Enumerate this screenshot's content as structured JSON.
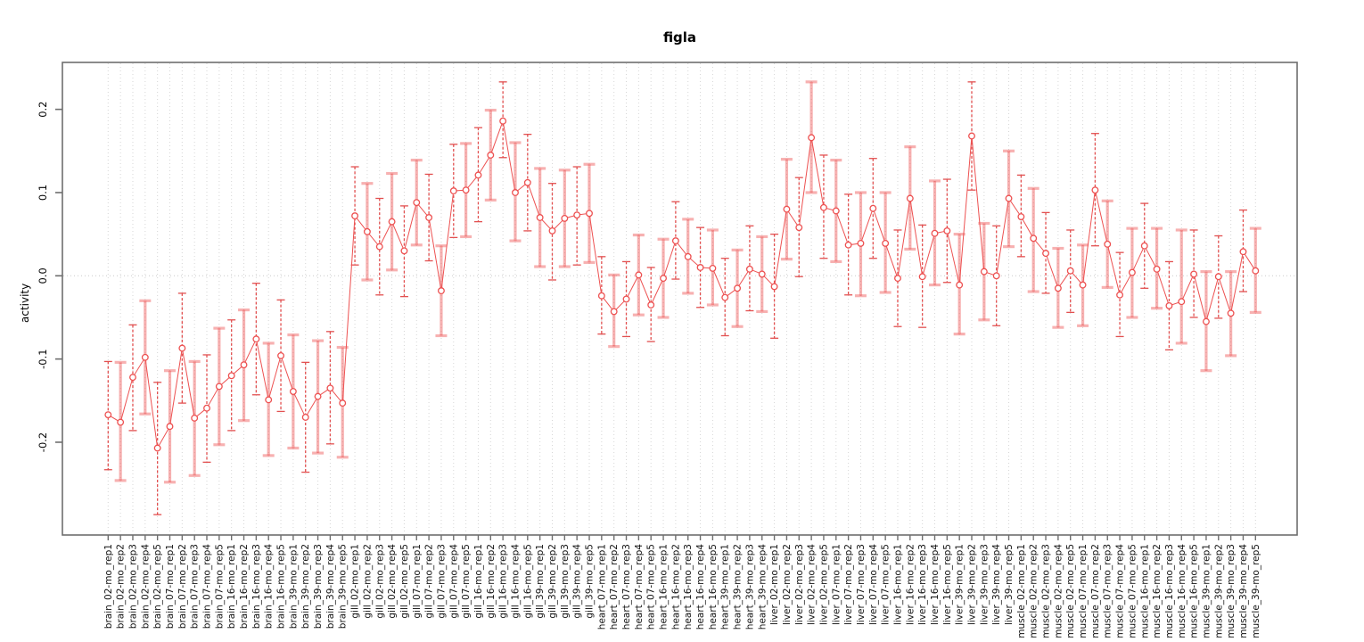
{
  "chart_data": {
    "type": "scatter",
    "subtype": "means-with-error-bars-connected-by-line",
    "title": "figla",
    "xlabel": "",
    "ylabel": "activity",
    "legend": "none",
    "grid": "vertical dotted gridline at every category; horizontal dotted line at y=0",
    "yticks": [
      "0.2",
      "0.1",
      "0.0",
      "-0.1",
      "-0.2"
    ],
    "ytick_values": [
      0.2,
      0.1,
      0.0,
      -0.1,
      -0.2
    ],
    "ylim": [
      -0.31,
      0.26
    ],
    "series_color": "#ed5151",
    "errorbar_pink": "#f2a3a3",
    "point_style": "open-circle",
    "categories": [
      "brain_02-mo_rep1",
      "brain_02-mo_rep2",
      "brain_02-mo_rep3",
      "brain_02-mo_rep4",
      "brain_02-mo_rep5",
      "brain_07-mo_rep1",
      "brain_07-mo_rep2",
      "brain_07-mo_rep3",
      "brain_07-mo_rep4",
      "brain_07-mo_rep5",
      "brain_16-mo_rep1",
      "brain_16-mo_rep2",
      "brain_16-mo_rep3",
      "brain_16-mo_rep4",
      "brain_16-mo_rep5",
      "brain_39-mo_rep1",
      "brain_39-mo_rep2",
      "brain_39-mo_rep3",
      "brain_39-mo_rep4",
      "brain_39-mo_rep5",
      "gill_02-mo_rep1",
      "gill_02-mo_rep2",
      "gill_02-mo_rep3",
      "gill_02-mo_rep4",
      "gill_02-mo_rep5",
      "gill_07-mo_rep1",
      "gill_07-mo_rep2",
      "gill_07-mo_rep3",
      "gill_07-mo_rep4",
      "gill_07-mo_rep5",
      "gill_16-mo_rep1",
      "gill_16-mo_rep2",
      "gill_16-mo_rep3",
      "gill_16-mo_rep4",
      "gill_16-mo_rep5",
      "gill_39-mo_rep1",
      "gill_39-mo_rep2",
      "gill_39-mo_rep3",
      "gill_39-mo_rep4",
      "gill_39-mo_rep5",
      "heart_07-mo_rep1",
      "heart_07-mo_rep2",
      "heart_07-mo_rep3",
      "heart_07-mo_rep4",
      "heart_07-mo_rep5",
      "heart_16-mo_rep1",
      "heart_16-mo_rep2",
      "heart_16-mo_rep3",
      "heart_16-mo_rep4",
      "heart_16-mo_rep5",
      "heart_39-mo_rep1",
      "heart_39-mo_rep2",
      "heart_39-mo_rep3",
      "heart_39-mo_rep4",
      "liver_02-mo_rep1",
      "liver_02-mo_rep2",
      "liver_02-mo_rep3",
      "liver_02-mo_rep4",
      "liver_02-mo_rep5",
      "liver_07-mo_rep1",
      "liver_07-mo_rep2",
      "liver_07-mo_rep3",
      "liver_07-mo_rep4",
      "liver_07-mo_rep5",
      "liver_16-mo_rep1",
      "liver_16-mo_rep2",
      "liver_16-mo_rep3",
      "liver_16-mo_rep4",
      "liver_16-mo_rep5",
      "liver_39-mo_rep1",
      "liver_39-mo_rep2",
      "liver_39-mo_rep3",
      "liver_39-mo_rep4",
      "liver_39-mo_rep5",
      "muscle_02-mo_rep1",
      "muscle_02-mo_rep2",
      "muscle_02-mo_rep3",
      "muscle_02-mo_rep4",
      "muscle_02-mo_rep5",
      "muscle_07-mo_rep1",
      "muscle_07-mo_rep2",
      "muscle_07-mo_rep3",
      "muscle_07-mo_rep4",
      "muscle_07-mo_rep5",
      "muscle_16-mo_rep1",
      "muscle_16-mo_rep2",
      "muscle_16-mo_rep3",
      "muscle_16-mo_rep4",
      "muscle_16-mo_rep5",
      "muscle_39-mo_rep1",
      "muscle_39-mo_rep2",
      "muscle_39-mo_rep3",
      "muscle_39-mo_rep4",
      "muscle_39-mo_rep5"
    ],
    "means": [
      -0.167,
      -0.176,
      -0.122,
      -0.098,
      -0.207,
      -0.181,
      -0.087,
      -0.171,
      -0.159,
      -0.133,
      -0.12,
      -0.107,
      -0.076,
      -0.149,
      -0.096,
      -0.139,
      -0.17,
      -0.145,
      -0.135,
      -0.153,
      0.072,
      0.053,
      0.035,
      0.065,
      0.03,
      0.088,
      0.07,
      -0.018,
      0.102,
      0.103,
      0.121,
      0.145,
      0.186,
      0.1,
      0.112,
      0.07,
      0.054,
      0.069,
      0.073,
      0.075,
      -0.024,
      -0.043,
      -0.028,
      0.001,
      -0.035,
      -0.003,
      0.042,
      0.023,
      0.01,
      0.009,
      -0.026,
      -0.015,
      0.008,
      0.002,
      -0.013,
      0.08,
      0.058,
      0.166,
      0.082,
      0.078,
      0.037,
      0.039,
      0.081,
      0.039,
      -0.003,
      0.093,
      -0.001,
      0.051,
      0.054,
      -0.011,
      0.168,
      0.005,
      0.0,
      0.093,
      0.071,
      0.045,
      0.027,
      -0.015,
      0.006,
      -0.011,
      0.103,
      0.038,
      -0.023,
      0.004,
      0.036,
      0.008,
      -0.036,
      -0.031,
      0.002,
      -0.055,
      -0.001,
      -0.045,
      0.029,
      0.006
    ],
    "lower": [
      -0.233,
      -0.246,
      -0.186,
      -0.166,
      -0.287,
      -0.248,
      -0.153,
      -0.24,
      -0.224,
      -0.203,
      -0.186,
      -0.174,
      -0.143,
      -0.216,
      -0.163,
      -0.207,
      -0.236,
      -0.213,
      -0.202,
      -0.218,
      0.013,
      -0.005,
      -0.023,
      0.007,
      -0.025,
      0.037,
      0.018,
      -0.072,
      0.046,
      0.047,
      0.065,
      0.091,
      0.142,
      0.042,
      0.054,
      0.011,
      -0.005,
      0.011,
      0.013,
      0.016,
      -0.07,
      -0.085,
      -0.073,
      -0.047,
      -0.079,
      -0.05,
      -0.004,
      -0.021,
      -0.038,
      -0.035,
      -0.072,
      -0.061,
      -0.042,
      -0.043,
      -0.075,
      0.02,
      -0.001,
      0.1,
      0.021,
      0.017,
      -0.023,
      -0.024,
      0.021,
      -0.02,
      -0.061,
      0.032,
      -0.062,
      -0.011,
      -0.008,
      -0.07,
      0.103,
      -0.053,
      -0.06,
      0.035,
      0.023,
      -0.019,
      -0.021,
      -0.062,
      -0.044,
      -0.06,
      0.036,
      -0.014,
      -0.073,
      -0.05,
      -0.015,
      -0.039,
      -0.089,
      -0.081,
      -0.05,
      -0.114,
      -0.051,
      -0.096,
      -0.019,
      -0.044
    ],
    "upper": [
      -0.103,
      -0.104,
      -0.059,
      -0.03,
      -0.128,
      -0.114,
      -0.021,
      -0.103,
      -0.095,
      -0.063,
      -0.053,
      -0.041,
      -0.009,
      -0.081,
      -0.029,
      -0.071,
      -0.104,
      -0.078,
      -0.067,
      -0.086,
      0.131,
      0.111,
      0.093,
      0.123,
      0.084,
      0.139,
      0.122,
      0.036,
      0.158,
      0.159,
      0.178,
      0.199,
      0.233,
      0.16,
      0.17,
      0.129,
      0.111,
      0.127,
      0.131,
      0.134,
      0.023,
      0.001,
      0.017,
      0.049,
      0.01,
      0.044,
      0.089,
      0.068,
      0.058,
      0.055,
      0.021,
      0.031,
      0.06,
      0.047,
      0.05,
      0.14,
      0.118,
      0.233,
      0.145,
      0.139,
      0.098,
      0.1,
      0.141,
      0.1,
      0.055,
      0.155,
      0.061,
      0.114,
      0.116,
      0.05,
      0.233,
      0.063,
      0.06,
      0.15,
      0.121,
      0.105,
      0.076,
      0.033,
      0.055,
      0.037,
      0.171,
      0.09,
      0.028,
      0.057,
      0.087,
      0.057,
      0.017,
      0.055,
      0.055,
      0.005,
      0.048,
      0.005,
      0.079,
      0.057
    ]
  }
}
